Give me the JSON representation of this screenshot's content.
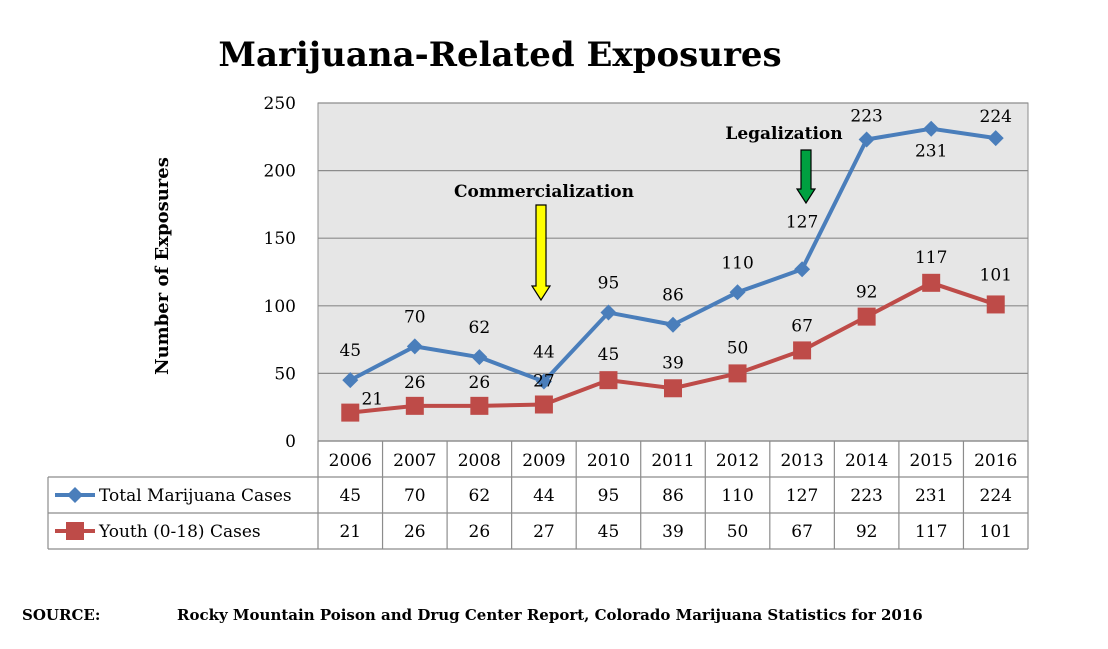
{
  "chart_data": {
    "type": "line",
    "title": "Marijuana-Related Exposures",
    "ylabel": "Number of Exposures",
    "xlabel": "",
    "ylim": [
      0,
      250
    ],
    "yticks": [
      0,
      50,
      100,
      150,
      200,
      250
    ],
    "grid": true,
    "categories": [
      "2006",
      "2007",
      "2008",
      "2009",
      "2010",
      "2011",
      "2012",
      "2013",
      "2014",
      "2015",
      "2016"
    ],
    "series": [
      {
        "name": "Total Marijuana Cases",
        "color": "#4a7ebb",
        "marker": "diamond",
        "values": [
          45,
          70,
          62,
          44,
          95,
          86,
          110,
          127,
          223,
          231,
          224
        ]
      },
      {
        "name": "Youth (0-18) Cases",
        "color": "#be4b48",
        "marker": "square",
        "values": [
          21,
          26,
          26,
          27,
          45,
          39,
          50,
          67,
          92,
          117,
          101
        ]
      }
    ],
    "annotations": [
      {
        "text": "Commercialization",
        "at": "2009",
        "arrow_color": "#ffff00"
      },
      {
        "text": "Legalization",
        "at": "2013",
        "arrow_color": "#00a040"
      }
    ],
    "data_table": true,
    "source_label": "SOURCE:",
    "source_text": "Rocky Mountain Poison and Drug Center Report, Colorado Marijuana Statistics for 2016"
  }
}
